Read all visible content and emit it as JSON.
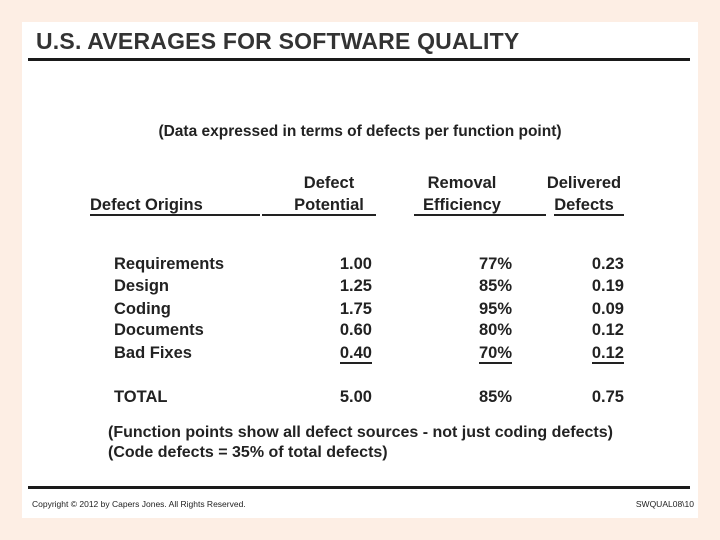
{
  "title": "U.S. AVERAGES FOR SOFTWARE QUALITY",
  "subtitle": "(Data expressed in terms of defects per function point)",
  "table": {
    "headers": {
      "origins": "Defect Origins",
      "potential_line1": "Defect",
      "potential_line2": "Potential",
      "efficiency_line1": "Removal",
      "efficiency_line2": "Efficiency",
      "delivered_line1": "Delivered",
      "delivered_line2": "Defects"
    },
    "rows": [
      {
        "origin": "Requirements",
        "potential": "1.00",
        "efficiency": "77%",
        "delivered": "0.23"
      },
      {
        "origin": "Design",
        "potential": "1.25",
        "efficiency": "85%",
        "delivered": "0.19"
      },
      {
        "origin": "Coding",
        "potential": "1.75",
        "efficiency": "95%",
        "delivered": "0.09"
      },
      {
        "origin": "Documents",
        "potential": "0.60",
        "efficiency": "80%",
        "delivered": "0.12"
      },
      {
        "origin": "Bad Fixes",
        "potential": "0.40",
        "efficiency": "70%",
        "delivered": "0.12"
      }
    ],
    "total": {
      "origin": "TOTAL",
      "potential": "5.00",
      "efficiency": "85%",
      "delivered": "0.75"
    }
  },
  "notes": [
    "(Function points show all defect sources - not just coding defects)",
    "(Code defects = 35% of total defects)"
  ],
  "footer": {
    "copyright": "Copyright © 2012 by Capers Jones.  All Rights Reserved.",
    "code": "SWQUAL08\\10"
  }
}
